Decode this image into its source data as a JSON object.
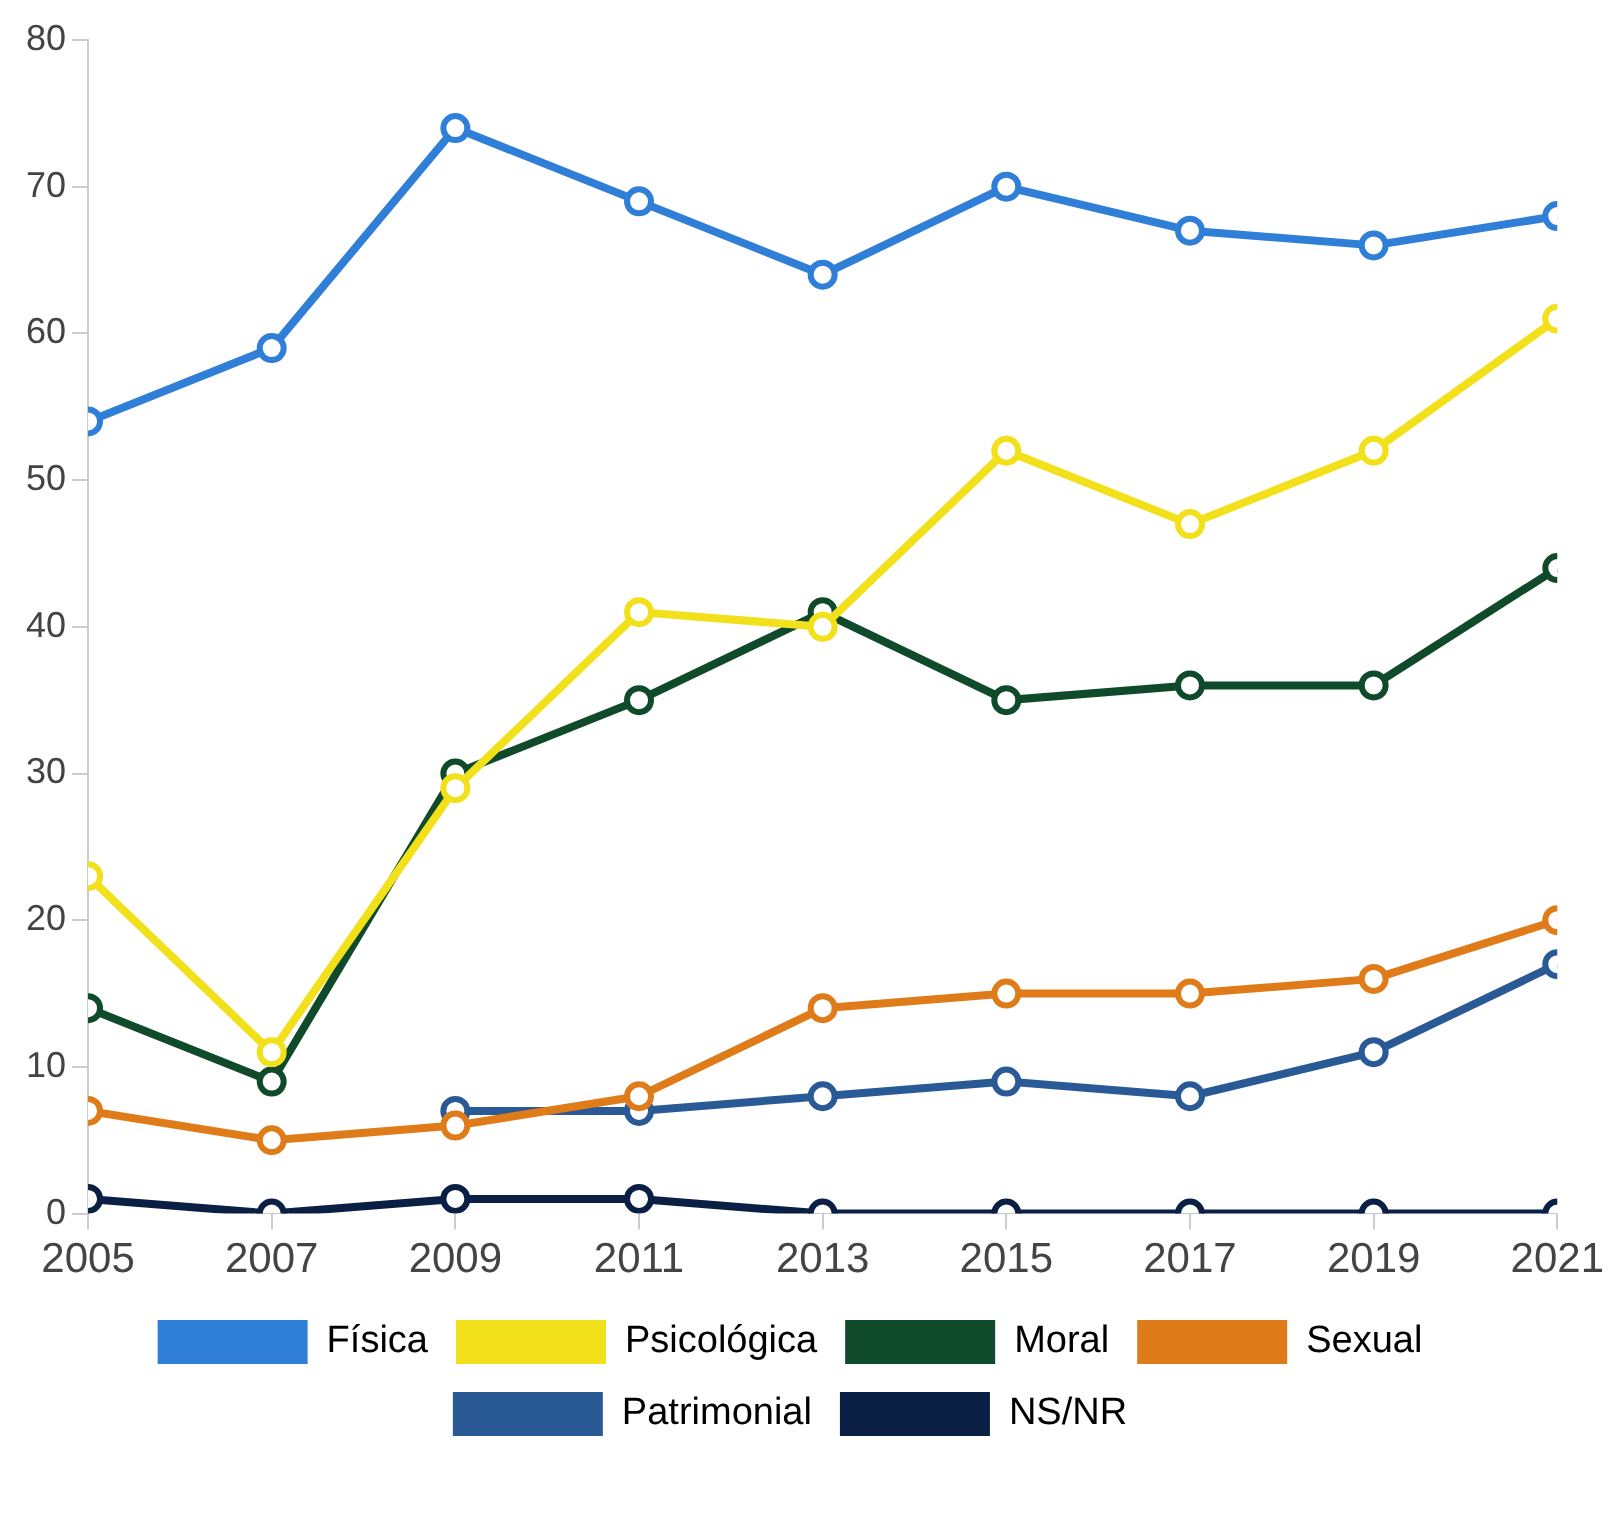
{
  "chart_data": {
    "type": "line",
    "x": [
      2005,
      2007,
      2009,
      2011,
      2013,
      2015,
      2017,
      2019,
      2021
    ],
    "xlim": [
      2005,
      2021
    ],
    "xticks": [
      2005,
      2007,
      2009,
      2011,
      2013,
      2015,
      2017,
      2019,
      2021
    ],
    "ylim": [
      0,
      80
    ],
    "yticks": [
      0,
      10,
      20,
      30,
      40,
      50,
      60,
      70,
      80
    ],
    "grid": false,
    "legend": "bottom",
    "marker": "circle",
    "line_style": "solid",
    "series": [
      {
        "name": "Física",
        "color": "#2f7fd8",
        "values": [
          54,
          59,
          74,
          69,
          64,
          70,
          67,
          66,
          68
        ]
      },
      {
        "name": "Psicológica",
        "color": "#f2e01a",
        "values": [
          23,
          11,
          29,
          41,
          40,
          52,
          47,
          52,
          61
        ]
      },
      {
        "name": "Moral",
        "color": "#0f4a2a",
        "values": [
          14,
          9,
          30,
          35,
          41,
          35,
          36,
          36,
          44
        ]
      },
      {
        "name": "Sexual",
        "color": "#e07b1a",
        "values": [
          7,
          5,
          6,
          8,
          14,
          15,
          15,
          16,
          20
        ]
      },
      {
        "name": "Patrimonial",
        "color": "#2a5a96",
        "values": [
          null,
          null,
          7,
          7,
          8,
          9,
          8,
          11,
          17
        ]
      },
      {
        "name": "NS/NR",
        "color": "#0a1f44",
        "values": [
          1,
          0,
          1,
          1,
          0,
          0,
          0,
          0,
          0
        ]
      }
    ]
  }
}
